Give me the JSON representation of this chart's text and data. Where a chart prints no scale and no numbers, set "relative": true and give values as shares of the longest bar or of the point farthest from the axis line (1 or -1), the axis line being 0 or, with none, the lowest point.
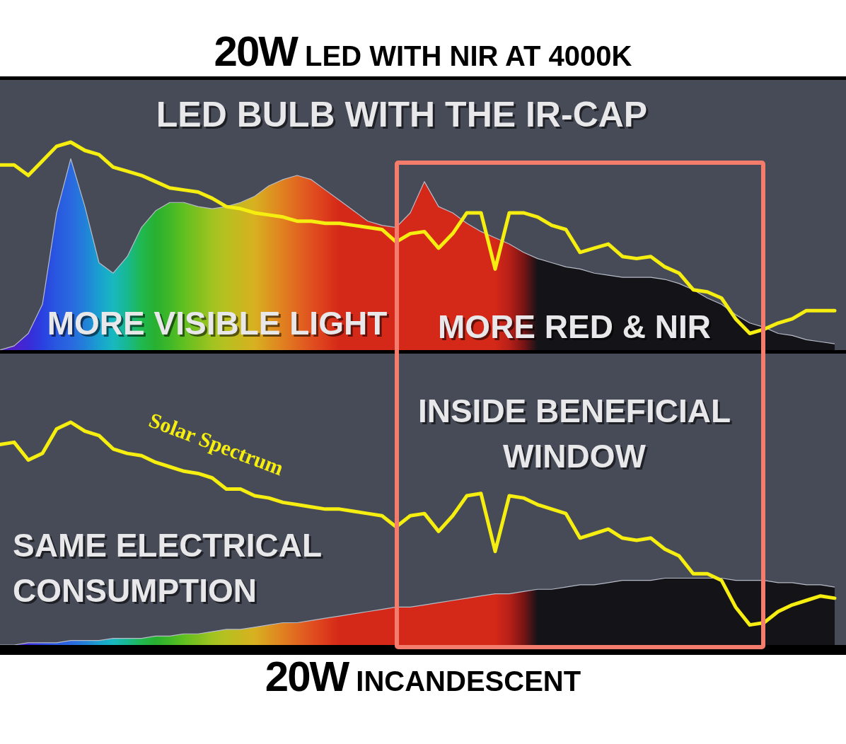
{
  "chart_data": [
    {
      "type": "line",
      "title": "20W LED WITH NIR AT 4000K",
      "subtitle": "LED BULB WITH THE IR-CAP",
      "relative": true,
      "annotations": [
        "MORE VISIBLE LIGHT",
        "MORE RED & NIR"
      ],
      "categories": [
        null,
        null,
        null,
        null,
        null,
        null,
        null,
        null,
        null,
        null,
        null,
        null,
        null,
        null,
        null,
        null,
        null,
        null,
        null,
        null,
        null,
        null,
        null,
        null,
        null,
        null,
        null,
        null,
        null,
        null,
        null,
        null,
        null,
        null,
        null,
        null,
        null,
        null,
        null,
        null,
        null,
        null,
        null,
        null,
        null,
        null,
        null,
        null,
        null,
        null,
        null,
        null,
        null,
        null,
        null,
        null,
        null,
        null,
        null,
        null
      ],
      "series": [
        {
          "type": "area",
          "colors": [
            "#5020c8",
            "#5020c8",
            "#3a2ad8",
            "#2a40e0",
            "#2858e0",
            "#2a68e0",
            "#2280d8",
            "#1aa0d0",
            "#18b8c0",
            "#18b890",
            "#20b850",
            "#28b030",
            "#40b828",
            "#60c020",
            "#80c020",
            "#a0c420",
            "#b8c020",
            "#c8b820",
            "#d8b020",
            "#dc9820",
            "#e08020",
            "#e06820",
            "#e05020",
            "#dc3c1c",
            "#d42818",
            "#d42818",
            "#d42818",
            "#d42818",
            "#d42818",
            "#d42818",
            "#d42818",
            "#d42818",
            "#d42818",
            "#d42818",
            "#d42818",
            "#d42818",
            "#b82018",
            "#7a1414",
            "#141418",
            "#141418",
            "#141418",
            "#141418",
            "#141418",
            "#141418",
            "#141418",
            "#141418",
            "#141418",
            "#141418",
            "#141418",
            "#141418",
            "#141418",
            "#141418",
            "#141418",
            "#141418",
            "#141418",
            "#141418",
            "#141418",
            "#141418",
            "#141418",
            "#141418"
          ],
          "values": [
            0,
            0.02,
            0.08,
            0.22,
            0.66,
            0.92,
            0.69,
            0.42,
            0.37,
            0.45,
            0.59,
            0.67,
            0.71,
            0.71,
            0.69,
            0.68,
            0.69,
            0.71,
            0.74,
            0.79,
            0.82,
            0.84,
            0.82,
            0.77,
            0.72,
            0.67,
            0.62,
            0.6,
            0.59,
            0.66,
            0.81,
            0.69,
            0.66,
            0.61,
            0.57,
            0.54,
            0.51,
            0.47,
            0.44,
            0.42,
            0.4,
            0.39,
            0.37,
            0.36,
            0.35,
            0.35,
            0.35,
            0.34,
            0.32,
            0.29,
            0.25,
            0.22,
            0.17,
            0.13,
            0.11,
            0.08,
            0.07,
            0.05,
            0.04,
            0.03
          ]
        },
        {
          "color": "#f5ee10",
          "values": [
            0.89,
            0.89,
            0.84,
            0.91,
            0.98,
            1,
            0.96,
            0.94,
            0.88,
            0.86,
            0.84,
            0.81,
            0.78,
            0.77,
            0.76,
            0.73,
            0.69,
            0.68,
            0.66,
            0.65,
            0.64,
            0.62,
            0.62,
            0.61,
            0.61,
            0.6,
            0.59,
            0.58,
            0.52,
            0.56,
            0.57,
            0.49,
            0.56,
            0.66,
            0.66,
            0.39,
            0.66,
            0.66,
            0.64,
            0.6,
            0.58,
            0.47,
            0.49,
            0.51,
            0.45,
            0.44,
            0.45,
            0.4,
            0.37,
            0.29,
            0.28,
            0.25,
            0.15,
            0.08,
            0.1,
            0.13,
            0.15,
            0.19,
            0.19,
            0.19
          ]
        }
      ]
    },
    {
      "type": "line",
      "xlabel": "20W INCANDESCENT",
      "relative": true,
      "annotations": [
        "INSIDE BENEFICIAL WINDOW",
        "SAME ELECTRICAL CONSUMPTION"
      ],
      "categories": [
        null,
        null,
        null,
        null,
        null,
        null,
        null,
        null,
        null,
        null,
        null,
        null,
        null,
        null,
        null,
        null,
        null,
        null,
        null,
        null,
        null,
        null,
        null,
        null,
        null,
        null,
        null,
        null,
        null,
        null,
        null,
        null,
        null,
        null,
        null,
        null,
        null,
        null,
        null,
        null,
        null,
        null,
        null,
        null,
        null,
        null,
        null,
        null,
        null,
        null,
        null,
        null,
        null,
        null,
        null,
        null,
        null,
        null,
        null,
        null
      ],
      "series": [
        {
          "type": "area",
          "colors": [
            "#5020c8",
            "#5020c8",
            "#3a2ad8",
            "#2a40e0",
            "#2858e0",
            "#2a68e0",
            "#2280d8",
            "#1aa0d0",
            "#18b8c0",
            "#18b890",
            "#20b850",
            "#28b030",
            "#40b828",
            "#60c020",
            "#80c020",
            "#a0c420",
            "#b8c020",
            "#c8b820",
            "#d8b020",
            "#dc9820",
            "#e08020",
            "#e06820",
            "#e05020",
            "#dc3c1c",
            "#d42818",
            "#d42818",
            "#d42818",
            "#d42818",
            "#d42818",
            "#d42818",
            "#d42818",
            "#d42818",
            "#d42818",
            "#d42818",
            "#d42818",
            "#d42818",
            "#b82018",
            "#7a1414",
            "#141418",
            "#141418",
            "#141418",
            "#141418",
            "#141418",
            "#141418",
            "#141418",
            "#141418",
            "#141418",
            "#141418",
            "#141418",
            "#141418",
            "#141418",
            "#141418",
            "#141418",
            "#141418",
            "#141418",
            "#141418",
            "#141418",
            "#141418",
            "#141418",
            "#141418"
          ],
          "values": [
            0,
            0,
            0.01,
            0.01,
            0.01,
            0.02,
            0.02,
            0.02,
            0.03,
            0.03,
            0.03,
            0.04,
            0.04,
            0.05,
            0.05,
            0.06,
            0.07,
            0.07,
            0.08,
            0.09,
            0.1,
            0.1,
            0.11,
            0.12,
            0.13,
            0.14,
            0.15,
            0.16,
            0.17,
            0.17,
            0.18,
            0.19,
            0.2,
            0.21,
            0.22,
            0.23,
            0.23,
            0.24,
            0.25,
            0.25,
            0.26,
            0.27,
            0.27,
            0.28,
            0.29,
            0.29,
            0.29,
            0.3,
            0.3,
            0.3,
            0.3,
            0.3,
            0.29,
            0.29,
            0.29,
            0.28,
            0.28,
            0.27,
            0.27,
            0.26
          ]
        },
        {
          "name": "Solar Spectrum",
          "color": "#f5ee10",
          "values": [
            0.9,
            0.91,
            0.83,
            0.86,
            0.97,
            1,
            0.96,
            0.94,
            0.88,
            0.86,
            0.85,
            0.82,
            0.8,
            0.78,
            0.77,
            0.75,
            0.7,
            0.7,
            0.67,
            0.66,
            0.64,
            0.63,
            0.62,
            0.61,
            0.61,
            0.6,
            0.59,
            0.58,
            0.53,
            0.58,
            0.59,
            0.51,
            0.58,
            0.67,
            0.68,
            0.42,
            0.67,
            0.66,
            0.63,
            0.61,
            0.59,
            0.48,
            0.5,
            0.52,
            0.48,
            0.47,
            0.48,
            0.43,
            0.4,
            0.32,
            0.32,
            0.29,
            0.17,
            0.09,
            0.1,
            0.15,
            0.18,
            0.2,
            0.22,
            0.21
          ]
        }
      ]
    }
  ]
}
